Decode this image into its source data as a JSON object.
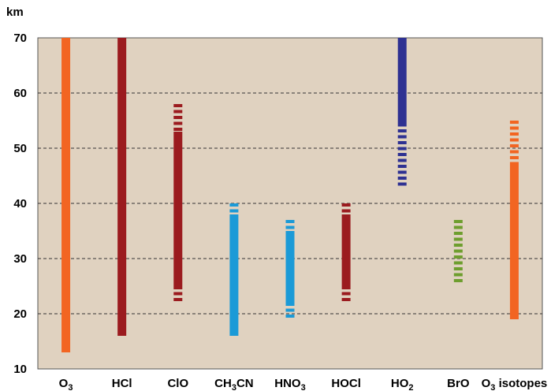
{
  "chart_data": {
    "type": "bar",
    "ylabel": "km",
    "ylim": [
      10,
      70
    ],
    "yticks": [
      10,
      20,
      30,
      40,
      50,
      60,
      70
    ],
    "grid": "horizontal dashed",
    "background": "#e0d2c0",
    "series": [
      {
        "label": "O",
        "sub": "3",
        "suffix": "",
        "color": "#f26522",
        "solid": [
          [
            13,
            70
          ]
        ],
        "dashed": []
      },
      {
        "label": "HCl",
        "sub": "",
        "suffix": "",
        "color": "#9b1b1f",
        "solid": [
          [
            16,
            70
          ]
        ],
        "dashed": []
      },
      {
        "label": "ClO",
        "sub": "",
        "suffix": "",
        "color": "#9b1b1f",
        "solid": [
          [
            25,
            53
          ]
        ],
        "dashed": [
          [
            22,
            25
          ],
          [
            53,
            58
          ]
        ]
      },
      {
        "label": "CH",
        "sub": "3",
        "suffix": "CN",
        "color": "#1b9ad7",
        "solid": [
          [
            16,
            38
          ]
        ],
        "dashed": [
          [
            38,
            40
          ]
        ]
      },
      {
        "label": "HNO",
        "sub": "3",
        "suffix": "",
        "color": "#1b9ad7",
        "solid": [
          [
            22,
            35
          ]
        ],
        "dashed": [
          [
            19,
            22
          ],
          [
            35,
            37
          ]
        ]
      },
      {
        "label": "HOCl",
        "sub": "",
        "suffix": "",
        "color": "#9b1b1f",
        "solid": [
          [
            25,
            38
          ]
        ],
        "dashed": [
          [
            22,
            25
          ],
          [
            38,
            40
          ]
        ]
      },
      {
        "label": "HO",
        "sub": "2",
        "suffix": "",
        "color": "#2e3192",
        "solid": [
          [
            54.5,
            70
          ]
        ],
        "dashed": [
          [
            43,
            54.5
          ]
        ]
      },
      {
        "label": "BrO",
        "sub": "",
        "suffix": "",
        "color": "#6e9e2e",
        "solid": [],
        "dashed": [
          [
            25,
            37
          ]
        ]
      },
      {
        "label": "O",
        "sub": "3",
        "suffix": " isotopes",
        "color": "#f26522",
        "solid": [
          [
            19,
            47
          ]
        ],
        "dashed": [
          [
            47,
            55
          ]
        ]
      }
    ]
  }
}
